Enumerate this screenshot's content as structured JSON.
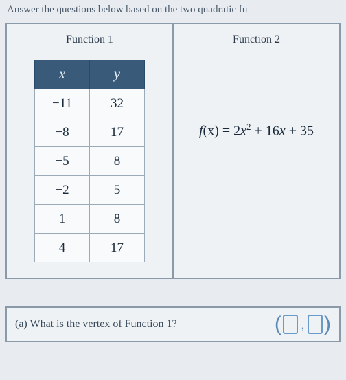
{
  "instruction": "Answer the questions below based on the two quadratic fu",
  "panel1_title": "Function 1",
  "panel2_title": "Function 2",
  "table": {
    "header_x": "x",
    "header_y": "y",
    "rows": [
      {
        "x": "−11",
        "y": "32"
      },
      {
        "x": "−8",
        "y": "17"
      },
      {
        "x": "−5",
        "y": "8"
      },
      {
        "x": "−2",
        "y": "5"
      },
      {
        "x": "1",
        "y": "8"
      },
      {
        "x": "4",
        "y": "17"
      }
    ]
  },
  "formula": {
    "lhs_f": "f",
    "lhs_x": "(x)",
    "eq": " = ",
    "c2": "2",
    "var2": "x",
    "exp": "2",
    "plus1": " + ",
    "c1": "16",
    "var1": "x",
    "plus2": " + ",
    "c0": "35"
  },
  "question": "(a) What is the vertex of Function 1?"
}
